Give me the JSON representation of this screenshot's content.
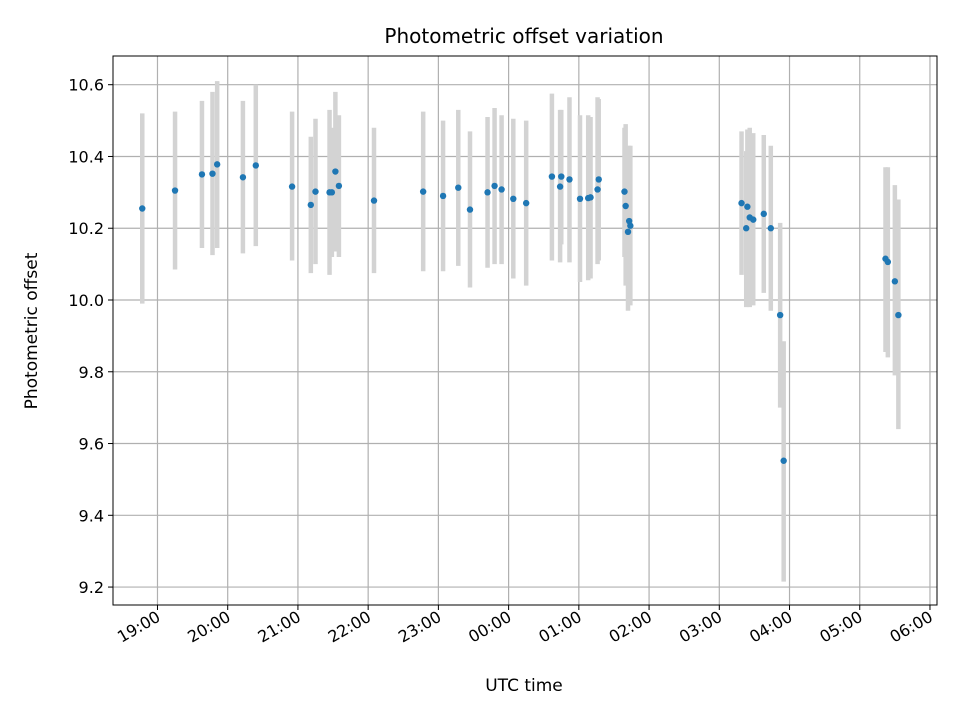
{
  "chart_data": {
    "type": "scatter",
    "title": "Photometric offset variation",
    "xlabel": "UTC time",
    "ylabel": "Photometric offset",
    "x_axis_type": "time",
    "x_ticks": [
      "19:00",
      "20:00",
      "21:00",
      "22:00",
      "23:00",
      "00:00",
      "01:00",
      "02:00",
      "03:00",
      "04:00",
      "05:00",
      "06:00"
    ],
    "y_ticks": [
      9.2,
      9.4,
      9.6,
      9.8,
      10.0,
      10.2,
      10.4,
      10.6
    ],
    "xlim": [
      "18:22",
      "06:06"
    ],
    "ylim": [
      9.15,
      10.68
    ],
    "grid": true,
    "colors": {
      "points": "#1f77b4",
      "errorbars": "#d3d3d3",
      "grid": "#b0b0b0"
    },
    "points": [
      {
        "x": "18:47",
        "y": 10.255,
        "lo": 9.99,
        "hi": 10.52
      },
      {
        "x": "19:15",
        "y": 10.305,
        "lo": 10.085,
        "hi": 10.525
      },
      {
        "x": "19:38",
        "y": 10.35,
        "lo": 10.145,
        "hi": 10.555
      },
      {
        "x": "19:47",
        "y": 10.352,
        "lo": 10.125,
        "hi": 10.58
      },
      {
        "x": "19:51",
        "y": 10.378,
        "lo": 10.145,
        "hi": 10.61
      },
      {
        "x": "20:13",
        "y": 10.342,
        "lo": 10.13,
        "hi": 10.555
      },
      {
        "x": "20:24",
        "y": 10.375,
        "lo": 10.15,
        "hi": 10.6
      },
      {
        "x": "20:55",
        "y": 10.316,
        "lo": 10.11,
        "hi": 10.525
      },
      {
        "x": "21:11",
        "y": 10.265,
        "lo": 10.075,
        "hi": 10.455
      },
      {
        "x": "21:15",
        "y": 10.302,
        "lo": 10.1,
        "hi": 10.505
      },
      {
        "x": "21:27",
        "y": 10.3,
        "lo": 10.07,
        "hi": 10.53
      },
      {
        "x": "21:29",
        "y": 10.3,
        "lo": 10.12,
        "hi": 10.48
      },
      {
        "x": "21:32",
        "y": 10.358,
        "lo": 10.135,
        "hi": 10.58
      },
      {
        "x": "21:35",
        "y": 10.318,
        "lo": 10.12,
        "hi": 10.515
      },
      {
        "x": "22:05",
        "y": 10.277,
        "lo": 10.075,
        "hi": 10.48
      },
      {
        "x": "22:47",
        "y": 10.302,
        "lo": 10.08,
        "hi": 10.525
      },
      {
        "x": "23:04",
        "y": 10.29,
        "lo": 10.08,
        "hi": 10.5
      },
      {
        "x": "23:17",
        "y": 10.313,
        "lo": 10.095,
        "hi": 10.53
      },
      {
        "x": "23:27",
        "y": 10.252,
        "lo": 10.035,
        "hi": 10.47
      },
      {
        "x": "23:42",
        "y": 10.3,
        "lo": 10.09,
        "hi": 10.51
      },
      {
        "x": "23:48",
        "y": 10.318,
        "lo": 10.1,
        "hi": 10.535
      },
      {
        "x": "23:54",
        "y": 10.308,
        "lo": 10.1,
        "hi": 10.515
      },
      {
        "x": "00:04",
        "y": 10.282,
        "lo": 10.06,
        "hi": 10.505
      },
      {
        "x": "00:15",
        "y": 10.27,
        "lo": 10.04,
        "hi": 10.5
      },
      {
        "x": "00:37",
        "y": 10.344,
        "lo": 10.11,
        "hi": 10.575
      },
      {
        "x": "00:44",
        "y": 10.316,
        "lo": 10.105,
        "hi": 10.53
      },
      {
        "x": "00:45",
        "y": 10.344,
        "lo": 10.155,
        "hi": 10.53
      },
      {
        "x": "00:52",
        "y": 10.336,
        "lo": 10.105,
        "hi": 10.565
      },
      {
        "x": "01:01",
        "y": 10.282,
        "lo": 10.05,
        "hi": 10.515
      },
      {
        "x": "01:08",
        "y": 10.284,
        "lo": 10.055,
        "hi": 10.515
      },
      {
        "x": "01:10",
        "y": 10.286,
        "lo": 10.06,
        "hi": 10.51
      },
      {
        "x": "01:16",
        "y": 10.308,
        "lo": 10.1,
        "hi": 10.565
      },
      {
        "x": "01:17",
        "y": 10.336,
        "lo": 10.11,
        "hi": 10.56
      },
      {
        "x": "01:39",
        "y": 10.302,
        "lo": 10.12,
        "hi": 10.48
      },
      {
        "x": "01:40",
        "y": 10.262,
        "lo": 10.04,
        "hi": 10.49
      },
      {
        "x": "01:42",
        "y": 10.19,
        "lo": 9.97,
        "hi": 10.41
      },
      {
        "x": "01:43",
        "y": 10.22,
        "lo": 9.99,
        "hi": 10.43
      },
      {
        "x": "01:44",
        "y": 10.207,
        "lo": 9.985,
        "hi": 10.43
      },
      {
        "x": "03:19",
        "y": 10.27,
        "lo": 10.07,
        "hi": 10.47
      },
      {
        "x": "03:23",
        "y": 10.2,
        "lo": 9.98,
        "hi": 10.415
      },
      {
        "x": "03:24",
        "y": 10.26,
        "lo": 10.04,
        "hi": 10.475
      },
      {
        "x": "03:26",
        "y": 10.23,
        "lo": 9.98,
        "hi": 10.48
      },
      {
        "x": "03:29",
        "y": 10.224,
        "lo": 9.985,
        "hi": 10.465
      },
      {
        "x": "03:38",
        "y": 10.24,
        "lo": 10.02,
        "hi": 10.46
      },
      {
        "x": "03:44",
        "y": 10.2,
        "lo": 9.97,
        "hi": 10.43
      },
      {
        "x": "03:52",
        "y": 9.958,
        "lo": 9.7,
        "hi": 10.215
      },
      {
        "x": "03:55",
        "y": 9.552,
        "lo": 9.215,
        "hi": 9.885
      },
      {
        "x": "05:22",
        "y": 10.115,
        "lo": 9.855,
        "hi": 10.37
      },
      {
        "x": "05:24",
        "y": 10.106,
        "lo": 9.84,
        "hi": 10.37
      },
      {
        "x": "05:30",
        "y": 10.052,
        "lo": 9.79,
        "hi": 10.32
      },
      {
        "x": "05:33",
        "y": 9.958,
        "lo": 9.64,
        "hi": 10.28
      }
    ]
  }
}
